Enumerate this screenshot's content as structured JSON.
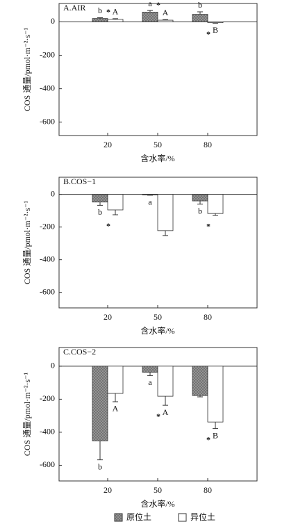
{
  "chart_data": [
    {
      "type": "bar",
      "title": "A.AIR",
      "x_label": "含水率/%",
      "y_label": "COS 通量/pmol·m⁻²·s⁻¹",
      "categories": [
        "20",
        "50",
        "80"
      ],
      "series": [
        {
          "color": "#9a9a9a",
          "hatch": true,
          "values": [
            20,
            58,
            45
          ],
          "errors": [
            5,
            10,
            15
          ],
          "letters": [
            "b",
            "a",
            "b"
          ]
        },
        {
          "color": "#ffffff",
          "hatch": false,
          "values": [
            15,
            10,
            -5
          ],
          "errors": [
            4,
            4,
            3
          ],
          "letters": [
            "A",
            "A",
            "B"
          ]
        }
      ],
      "stars": [
        "*",
        "*",
        "*"
      ],
      "ylim": [
        -680,
        110
      ],
      "yticks": [
        -600,
        -400,
        -200,
        0
      ]
    },
    {
      "type": "bar",
      "title": "B.COS−1",
      "x_label": "含水率/%",
      "y_label": "COS 通量/pmol·m⁻²·s⁻¹",
      "categories": [
        "20",
        "50",
        "80"
      ],
      "series": [
        {
          "color": "#9a9a9a",
          "hatch": true,
          "values": [
            -47,
            -3,
            -40
          ],
          "errors": [
            20,
            2,
            20
          ],
          "letters": [
            "b",
            "a",
            "b"
          ]
        },
        {
          "color": "#ffffff",
          "hatch": false,
          "values": [
            -95,
            -222,
            -117
          ],
          "errors": [
            30,
            30,
            12
          ],
          "letters": [
            null,
            null,
            null
          ]
        }
      ],
      "stars": [
        "*",
        null,
        "*"
      ],
      "ylim": [
        -695,
        105
      ],
      "yticks": [
        -600,
        -400,
        -200,
        0
      ]
    },
    {
      "type": "bar",
      "title": "C.COS−2",
      "x_label": "含水率/%",
      "y_label": "COS 通量/pmol·m⁻²·s⁻¹",
      "categories": [
        "20",
        "50",
        "80"
      ],
      "series": [
        {
          "name": "原位土",
          "color": "#9a9a9a",
          "hatch": true,
          "values": [
            -452,
            -37,
            -178
          ],
          "errors": [
            115,
            20,
            8
          ],
          "letters": [
            "b",
            "a",
            null
          ]
        },
        {
          "name": "异位土",
          "color": "#ffffff",
          "hatch": false,
          "values": [
            -165,
            -182,
            -338
          ],
          "errors": [
            50,
            55,
            40
          ],
          "letters": [
            "A",
            "A",
            "B"
          ]
        }
      ],
      "stars": [
        null,
        "*",
        "*"
      ],
      "ylim": [
        -695,
        113
      ],
      "yticks": [
        -600,
        -400,
        -200,
        0
      ]
    }
  ]
}
